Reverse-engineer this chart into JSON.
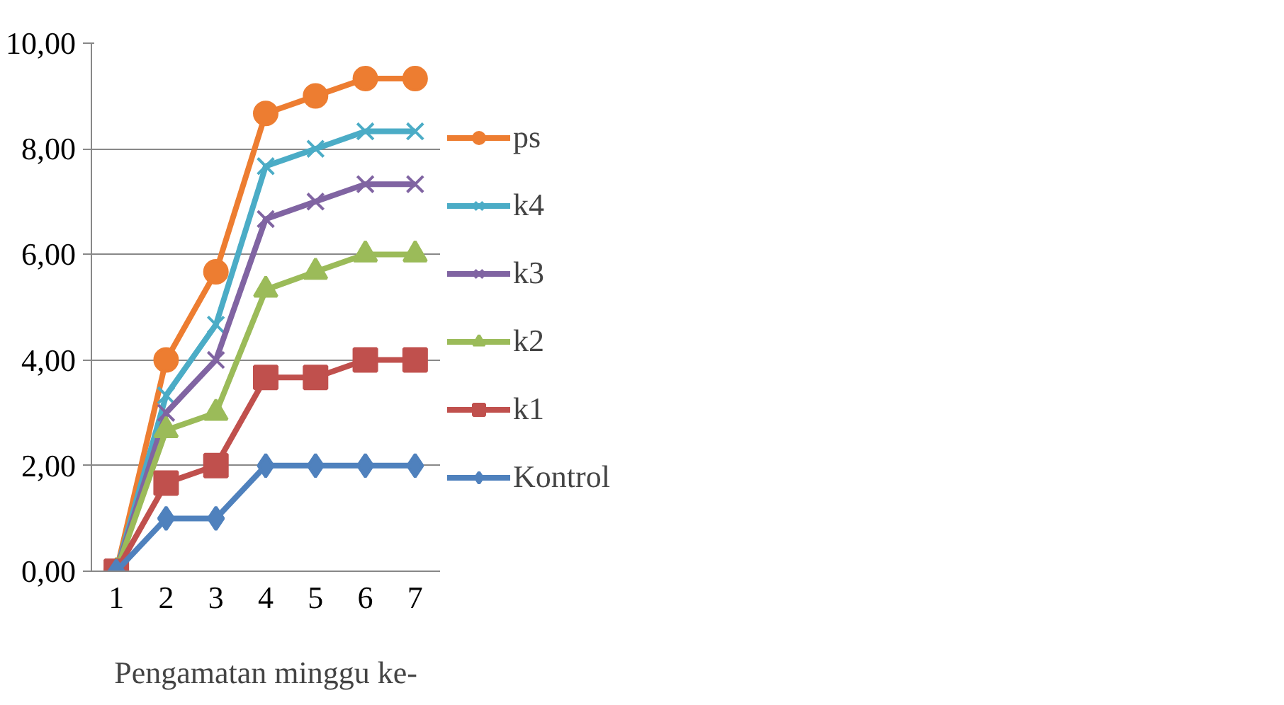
{
  "chart_data": {
    "type": "line",
    "xlabel": "Pengamatan minggu ke-",
    "categories": [
      "1",
      "2",
      "3",
      "4",
      "5",
      "6",
      "7"
    ],
    "series": [
      {
        "name": "ps",
        "color": "#ed7d31",
        "marker": "circle",
        "values": [
          0,
          4.0,
          5.67,
          8.67,
          9.0,
          9.33,
          9.33
        ]
      },
      {
        "name": "k4",
        "color": "#4bacc6",
        "marker": "cross",
        "values": [
          0,
          3.33,
          4.67,
          7.67,
          8.0,
          8.33,
          8.33
        ]
      },
      {
        "name": "k3",
        "color": "#8064a2",
        "marker": "cross",
        "values": [
          0,
          3.0,
          4.0,
          6.67,
          7.0,
          7.33,
          7.33
        ]
      },
      {
        "name": "k2",
        "color": "#9bbb59",
        "marker": "triangle",
        "values": [
          0,
          2.67,
          3.0,
          5.33,
          5.67,
          6.0,
          6.0
        ]
      },
      {
        "name": "k1",
        "color": "#c0504d",
        "marker": "square",
        "values": [
          0,
          1.67,
          2.0,
          3.67,
          3.67,
          4.0,
          4.0
        ]
      },
      {
        "name": "Kontrol",
        "color": "#4f81bd",
        "marker": "diamond",
        "values": [
          0,
          1.0,
          1.0,
          2.0,
          2.0,
          2.0,
          2.0
        ]
      }
    ],
    "ylim": [
      0,
      10
    ],
    "yticks": [
      {
        "value": 0,
        "label": "0,00"
      },
      {
        "value": 2,
        "label": "2,00"
      },
      {
        "value": 4,
        "label": "4,00"
      },
      {
        "value": 6,
        "label": "6,00"
      },
      {
        "value": 8,
        "label": "8,00"
      },
      {
        "value": 10,
        "label": "10,00"
      }
    ],
    "grid": "y",
    "legend": "right",
    "line_style": "solid"
  }
}
